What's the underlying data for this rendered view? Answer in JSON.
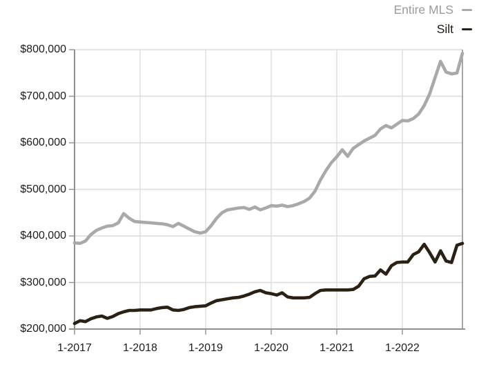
{
  "legend": {
    "items": [
      {
        "label": "Entire MLS",
        "color": "#a9a9a9",
        "text_color": "#9b9b9b"
      },
      {
        "label": "Silt",
        "color": "#2a2014",
        "text_color": "#201812"
      }
    ]
  },
  "chart_data": {
    "type": "line",
    "title": "",
    "xlabel": "",
    "ylabel": "",
    "x_frequency": "monthly",
    "x_start": "1-2017",
    "x_end": "12-2022",
    "x_tick_labels": [
      "1-2017",
      "1-2018",
      "1-2019",
      "1-2020",
      "1-2021",
      "1-2022"
    ],
    "x_tick_month_indices": [
      0,
      12,
      24,
      36,
      48,
      60
    ],
    "y_tick_labels": [
      "$200,000",
      "$300,000",
      "$400,000",
      "$500,000",
      "$600,000",
      "$700,000",
      "$800,000"
    ],
    "y_ticks": [
      200000,
      300000,
      400000,
      500000,
      600000,
      700000,
      800000
    ],
    "ylim": [
      200000,
      800000
    ],
    "grid": true,
    "legend_position": "top-right",
    "series": [
      {
        "name": "Entire MLS",
        "color": "#a9a9a9",
        "values": [
          385000,
          384000,
          389000,
          403000,
          412000,
          417000,
          421000,
          422000,
          428000,
          448000,
          438000,
          431000,
          430000,
          429000,
          428000,
          427000,
          426000,
          424000,
          420000,
          427000,
          421000,
          415000,
          409000,
          406000,
          409000,
          422000,
          438000,
          450000,
          456000,
          458000,
          460000,
          461000,
          457000,
          462000,
          456000,
          460000,
          465000,
          464000,
          466000,
          463000,
          465000,
          469000,
          474000,
          481000,
          496000,
          520000,
          540000,
          557000,
          570000,
          585000,
          571000,
          588000,
          596000,
          604000,
          610000,
          616000,
          630000,
          637000,
          632000,
          640000,
          648000,
          647000,
          652000,
          662000,
          680000,
          705000,
          740000,
          775000,
          752000,
          748000,
          750000,
          792000
        ]
      },
      {
        "name": "Silt",
        "color": "#2a2014",
        "values": [
          212000,
          218000,
          216000,
          222000,
          226000,
          228000,
          223000,
          227000,
          233000,
          237000,
          240000,
          240000,
          241000,
          241000,
          241000,
          244000,
          246000,
          247000,
          241000,
          240000,
          242000,
          246000,
          248000,
          249000,
          250000,
          256000,
          261000,
          263000,
          265000,
          267000,
          268000,
          271000,
          275000,
          280000,
          283000,
          278000,
          276000,
          273000,
          278000,
          269000,
          267000,
          267000,
          267000,
          268000,
          276000,
          283000,
          284000,
          284000,
          284000,
          284000,
          284000,
          285000,
          292000,
          308000,
          313000,
          314000,
          327000,
          318000,
          336000,
          343000,
          344000,
          344000,
          360000,
          366000,
          382000,
          364000,
          344000,
          368000,
          346000,
          343000,
          380000,
          384000
        ]
      }
    ]
  }
}
